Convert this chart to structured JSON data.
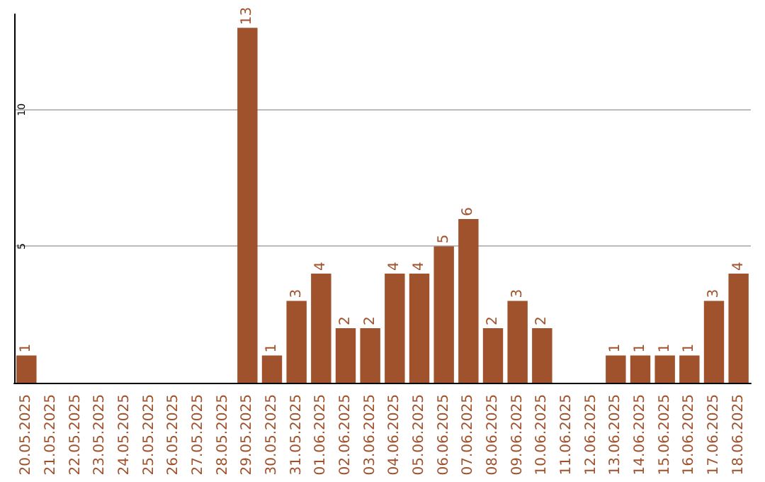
{
  "chart_data": {
    "type": "bar",
    "categories": [
      "20.05.2025",
      "21.05.2025",
      "22.05.2025",
      "23.05.2025",
      "24.05.2025",
      "25.05.2025",
      "26.05.2025",
      "27.05.2025",
      "28.05.2025",
      "29.05.2025",
      "30.05.2025",
      "31.05.2025",
      "01.06.2025",
      "02.06.2025",
      "03.06.2025",
      "04.06.2025",
      "05.06.2025",
      "06.06.2025",
      "07.06.2025",
      "08.06.2025",
      "09.06.2025",
      "10.06.2025",
      "11.06.2025",
      "12.06.2025",
      "13.06.2025",
      "14.06.2025",
      "15.06.2025",
      "16.06.2025",
      "17.06.2025",
      "18.06.2025"
    ],
    "values": [
      1,
      0,
      0,
      0,
      0,
      0,
      0,
      0,
      0,
      13,
      1,
      3,
      4,
      2,
      2,
      4,
      4,
      5,
      6,
      2,
      3,
      2,
      0,
      0,
      1,
      1,
      1,
      1,
      3,
      4
    ],
    "value_labels": [
      "1",
      null,
      null,
      null,
      null,
      null,
      null,
      null,
      null,
      "13",
      "1",
      "3",
      "4",
      "2",
      "2",
      "4",
      "4",
      "5",
      "6",
      "2",
      "3",
      "2",
      null,
      null,
      "1",
      "1",
      "1",
      "1",
      "3",
      "4"
    ],
    "color": "#a0522d",
    "ylim": [
      0,
      13.5
    ],
    "yticks": [
      5,
      10
    ],
    "grid": "y"
  }
}
